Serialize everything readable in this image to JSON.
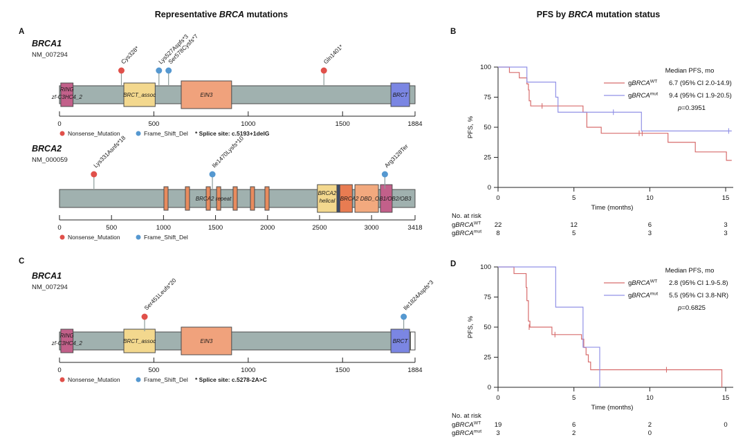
{
  "titles": {
    "left": [
      {
        "t": "Representative "
      },
      {
        "t": "BRCA",
        "i": true
      },
      {
        "t": " mutations"
      }
    ],
    "right": [
      {
        "t": "PFS by "
      },
      {
        "t": "BRCA",
        "i": true
      },
      {
        "t": " mutation status"
      }
    ]
  },
  "panel_labels": {
    "a": "A",
    "b": "B",
    "c": "C",
    "d": "D"
  },
  "colors": {
    "nonsense": "#e0504a",
    "frameshift": "#5598d0",
    "backbone": "#a0b1af",
    "backbone_border": "#4b4b4b",
    "domain_border": "#4b4b4b",
    "wt_curve": "#d76c6c",
    "mut_curve": "#9191e6",
    "axis": "#222222"
  },
  "legend_labels": {
    "nonsense": "Nonsense_Mutation",
    "frameshift": "Frame_Shift_Del"
  },
  "chart_data": [
    {
      "type": "lollipop",
      "id": "lolli-a-brca1",
      "gene": "BRCA1",
      "transcript": "NM_007294",
      "length": 1884,
      "ticks": [
        0,
        500,
        1000,
        1500,
        1884
      ],
      "mutations": [
        {
          "label": "Cys328*",
          "pos": 328,
          "type": "nonsense"
        },
        {
          "label": "Lys527Aspfs*3",
          "pos": 527,
          "type": "frameshift"
        },
        {
          "label": "Ser578Cysfs*7",
          "pos": 578,
          "type": "frameshift"
        },
        {
          "label": "Gln1401*",
          "pos": 1401,
          "type": "nonsense"
        }
      ],
      "domains": [
        {
          "label": "RING",
          "sub": "zf-C3HC4_2",
          "start": 7,
          "end": 72,
          "color": "#c2608a",
          "size": "md"
        },
        {
          "label": "BRCT_assoc",
          "start": 341,
          "end": 507,
          "color": "#f3d88e",
          "size": "md"
        },
        {
          "label": "EIN3",
          "start": 645,
          "end": 912,
          "color": "#f0a27c",
          "size": "lg"
        },
        {
          "label": "BRCT",
          "start": 1756,
          "end": 1855,
          "color": "#7b86e3",
          "size": "md"
        }
      ],
      "float_labels": [],
      "splice_note": "* Splice site: c.5193+1delG",
      "tail_start": null
    },
    {
      "type": "lollipop",
      "id": "lolli-a-brca2",
      "gene": "BRCA2",
      "transcript": "NM_000059",
      "length": 3418,
      "ticks": [
        0,
        500,
        1000,
        1500,
        2000,
        2500,
        3000,
        3418
      ],
      "mutations": [
        {
          "label": "Lys331Asnfs*18",
          "pos": 331,
          "type": "nonsense"
        },
        {
          "label": "Ile1470Lysfs*10",
          "pos": 1470,
          "type": "frameshift"
        },
        {
          "label": "Arg3128Ter",
          "pos": 3128,
          "type": "frameshift"
        }
      ],
      "domains": [
        {
          "label": "",
          "start": 1004,
          "end": 1044,
          "color": "#e88b5e",
          "size": "md"
        },
        {
          "label": "",
          "start": 1210,
          "end": 1250,
          "color": "#e88b5e",
          "size": "md"
        },
        {
          "label": "",
          "start": 1410,
          "end": 1450,
          "color": "#e88b5e",
          "size": "md"
        },
        {
          "label": "",
          "start": 1510,
          "end": 1550,
          "color": "#e88b5e",
          "size": "md"
        },
        {
          "label": "",
          "start": 1669,
          "end": 1709,
          "color": "#e88b5e",
          "size": "md"
        },
        {
          "label": "",
          "start": 1835,
          "end": 1875,
          "color": "#e88b5e",
          "size": "md"
        },
        {
          "label": "",
          "start": 1975,
          "end": 2015,
          "color": "#e88b5e",
          "size": "md"
        },
        {
          "label": "BRCA2",
          "sub2": "helical",
          "start": 2479,
          "end": 2667,
          "color": "#f3d88e",
          "size": "lg"
        },
        {
          "label": "",
          "start": 2667,
          "end": 2695,
          "color": "#3a4a6b",
          "size": "lg"
        },
        {
          "label": "",
          "start": 2695,
          "end": 2815,
          "color": "#e87c52",
          "size": "lg"
        },
        {
          "label": "",
          "start": 2840,
          "end": 3066,
          "color": "#f2a97e",
          "size": "lg"
        },
        {
          "label": "",
          "start": 3085,
          "end": 3198,
          "color": "#c2608a",
          "size": "lg"
        }
      ],
      "float_labels": [
        {
          "text": "BRCA2 repeat",
          "pos": 1480
        },
        {
          "text": "BRCA2 DBD_OB1/OB2/OB3",
          "pos": 3040
        }
      ],
      "splice_note": null,
      "tail_start": null
    },
    {
      "type": "lollipop",
      "id": "lolli-c-brca1",
      "gene": "BRCA1",
      "transcript": "NM_007294",
      "length": 1884,
      "ticks": [
        0,
        500,
        1000,
        1500,
        1884
      ],
      "mutations": [
        {
          "label": "Ser451Leufs*20",
          "pos": 451,
          "type": "nonsense"
        },
        {
          "label": "Ile1824Aspfs*3",
          "pos": 1824,
          "type": "frameshift"
        }
      ],
      "domains": [
        {
          "label": "RING",
          "sub": "zf-C3HC4_2",
          "start": 7,
          "end": 72,
          "color": "#c2608a",
          "size": "md"
        },
        {
          "label": "BRCT_assoc",
          "start": 341,
          "end": 507,
          "color": "#f3d88e",
          "size": "md"
        },
        {
          "label": "EIN3",
          "start": 645,
          "end": 912,
          "color": "#f0a27c",
          "size": "lg"
        },
        {
          "label": "BRCT",
          "start": 1756,
          "end": 1855,
          "color": "#7b86e3",
          "size": "md"
        }
      ],
      "float_labels": [],
      "splice_note": "* Splice site: c.5278-2A>C",
      "tail_start": 1860
    },
    {
      "type": "km_step",
      "id": "km-b",
      "ylabel": "PFS, %",
      "xlabel": "Time (months)",
      "yticks": [
        0,
        25,
        50,
        75,
        100
      ],
      "xticks": [
        0,
        5,
        10,
        15
      ],
      "xmax": 15.5,
      "ylim": [
        0,
        100
      ],
      "legend_header": "Median PFS, mo",
      "series": [
        {
          "key": "wt",
          "name": {
            "pre": "g",
            "it": "BRCA",
            "sup": "WT"
          },
          "stat": "6.7 (95% CI 2.0-14.9)",
          "points": [
            [
              0,
              100
            ],
            [
              0.75,
              95.5
            ],
            [
              1.4,
              91
            ],
            [
              1.9,
              86
            ],
            [
              2.0,
              81
            ],
            [
              2.05,
              72
            ],
            [
              2.15,
              67.7
            ],
            [
              5.6,
              62.5
            ],
            [
              5.85,
              50
            ],
            [
              6.8,
              45
            ],
            [
              11.2,
              37.5
            ],
            [
              13.0,
              29.5
            ],
            [
              15.05,
              22.5
            ],
            [
              15.4,
              22.5
            ]
          ],
          "censors": [
            [
              2.9,
              67.7
            ],
            [
              9.3,
              45
            ],
            [
              9.5,
              45
            ]
          ]
        },
        {
          "key": "mut",
          "name": {
            "pre": "g",
            "it": "BRCA",
            "sup": "mut"
          },
          "stat": "9.4 (95% CI 1.9-20.5)",
          "points": [
            [
              0,
              100
            ],
            [
              1.9,
              87.5
            ],
            [
              3.8,
              75
            ],
            [
              3.95,
              62.5
            ],
            [
              9.45,
              46.9
            ],
            [
              15.4,
              46.9
            ]
          ],
          "censors": [
            [
              7.6,
              62.5
            ],
            [
              15.2,
              46.9
            ]
          ]
        }
      ],
      "pvalue": {
        "it": "p",
        "rest": "=0.3951"
      },
      "risk_table": {
        "title": "No. at risk",
        "rows": [
          {
            "name": {
              "pre": "g",
              "it": "BRCA",
              "sup": "WT"
            },
            "counts": [
              "22",
              "12",
              "6",
              "3"
            ]
          },
          {
            "name": {
              "pre": "g",
              "it": "BRCA",
              "sup": "mut"
            },
            "counts": [
              "8",
              "5",
              "3",
              "3"
            ]
          }
        ]
      }
    },
    {
      "type": "km_step",
      "id": "km-d",
      "ylabel": "PFS, %",
      "xlabel": "Time (months)",
      "yticks": [
        0,
        25,
        50,
        75,
        100
      ],
      "xticks": [
        0,
        5,
        10,
        15
      ],
      "xmax": 15.5,
      "ylim": [
        0,
        100
      ],
      "legend_header": "Median PFS, mo",
      "series": [
        {
          "key": "wt",
          "name": {
            "pre": "g",
            "it": "BRCA",
            "sup": "WT"
          },
          "stat": "2.8 (95% CI 1.9-5.8)",
          "points": [
            [
              0,
              100
            ],
            [
              1.05,
              94.5
            ],
            [
              1.85,
              83
            ],
            [
              1.9,
              72
            ],
            [
              2.0,
              55
            ],
            [
              2.1,
              50
            ],
            [
              3.55,
              43.8
            ],
            [
              5.5,
              40
            ],
            [
              5.65,
              33
            ],
            [
              5.8,
              27
            ],
            [
              5.95,
              21
            ],
            [
              6.1,
              14.6
            ],
            [
              14.7,
              14.6
            ],
            [
              14.75,
              0
            ]
          ],
          "censors": [
            [
              2.05,
              50
            ],
            [
              3.75,
              43.8
            ],
            [
              11.1,
              14.6
            ]
          ]
        },
        {
          "key": "mut",
          "name": {
            "pre": "g",
            "it": "BRCA",
            "sup": "mut"
          },
          "stat": "5.5 (95% CI 3.8-NR)",
          "points": [
            [
              0,
              100
            ],
            [
              3.8,
              66.6
            ],
            [
              5.6,
              33.3
            ],
            [
              6.7,
              0
            ]
          ],
          "censors": []
        }
      ],
      "pvalue": {
        "it": "p",
        "rest": "=0.6825"
      },
      "risk_table": {
        "title": "No. at risk",
        "rows": [
          {
            "name": {
              "pre": "g",
              "it": "BRCA",
              "sup": "WT"
            },
            "counts": [
              "19",
              "6",
              "2",
              "0"
            ]
          },
          {
            "name": {
              "pre": "g",
              "it": "BRCA",
              "sup": "mut"
            },
            "counts": [
              "3",
              "2",
              "0",
              ""
            ]
          }
        ]
      }
    }
  ]
}
